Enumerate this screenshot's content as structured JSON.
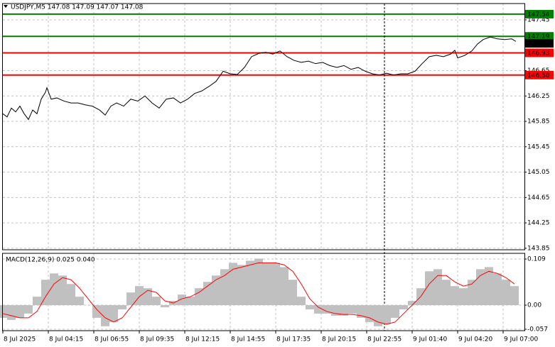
{
  "chart_data": [
    {
      "type": "line",
      "title": "USDJPY,M5  147.08 147.09 147.07 147.08",
      "x": [
        0,
        3,
        6,
        9,
        12,
        15,
        18,
        21,
        24,
        27,
        30,
        31,
        34,
        38,
        43,
        48,
        53,
        58,
        63,
        68,
        72,
        76,
        80,
        85,
        90,
        95,
        100,
        105,
        110,
        115,
        120,
        125,
        130,
        135,
        140,
        145,
        150,
        155,
        160,
        165,
        170,
        175,
        180,
        185,
        190,
        195,
        200,
        205,
        210,
        215,
        220,
        225,
        230,
        235,
        240,
        245,
        250,
        255,
        260,
        265,
        270,
        275,
        280,
        285,
        290,
        295,
        300,
        305,
        310,
        315,
        318,
        320,
        325,
        330,
        334,
        338,
        343,
        348,
        353,
        358,
        361
      ],
      "series": [
        {
          "color": "#000000",
          "values": [
            145.97,
            145.92,
            146.06,
            146.0,
            146.09,
            145.97,
            145.88,
            146.03,
            145.97,
            146.2,
            146.31,
            146.38,
            146.2,
            146.22,
            146.17,
            146.14,
            146.14,
            146.11,
            146.09,
            146.03,
            145.95,
            146.09,
            146.14,
            146.09,
            146.2,
            146.17,
            146.25,
            146.14,
            146.06,
            146.2,
            146.22,
            146.14,
            146.2,
            146.29,
            146.33,
            146.4,
            146.48,
            146.64,
            146.6,
            146.59,
            146.7,
            146.87,
            146.92,
            146.94,
            146.91,
            146.96,
            146.87,
            146.81,
            146.78,
            146.8,
            146.76,
            146.78,
            146.73,
            146.7,
            146.73,
            146.67,
            146.7,
            146.64,
            146.6,
            146.58,
            146.61,
            146.58,
            146.6,
            146.6,
            146.64,
            146.76,
            146.87,
            146.89,
            146.87,
            146.91,
            146.97,
            146.85,
            146.89,
            146.96,
            147.07,
            147.14,
            147.18,
            147.15,
            147.14,
            147.15,
            147.11
          ]
        }
      ],
      "levels": [
        {
          "value": 147.54,
          "color": "#008000"
        },
        {
          "value": 147.19,
          "color": "#008000"
        },
        {
          "value": 146.93,
          "color": "#ff0000"
        },
        {
          "value": 146.58,
          "color": "#ff0000"
        }
      ],
      "last": 147.08,
      "vline": 268.5,
      "xlim": [
        0,
        367
      ],
      "xticks": [
        {
          "value": 0,
          "label": "8 Jul 2025"
        },
        {
          "value": 32,
          "label": "8 Jul 04:15"
        },
        {
          "value": 64,
          "label": "8 Jul 06:55"
        },
        {
          "value": 96,
          "label": "8 Jul 09:35"
        },
        {
          "value": 128,
          "label": "8 Jul 12:15"
        },
        {
          "value": 160,
          "label": "8 Jul 14:55"
        },
        {
          "value": 192,
          "label": "8 Jul 17:35"
        },
        {
          "value": 224,
          "label": "8 Jul 20:15"
        },
        {
          "value": 256,
          "label": "8 Jul 22:55"
        },
        {
          "value": 288,
          "label": "9 Jul 01:40"
        },
        {
          "value": 320,
          "label": "9 Jul 04:20"
        },
        {
          "value": 352,
          "label": "9 Jul 07:00"
        }
      ],
      "ylim": [
        143.826,
        147.707
      ],
      "yticks": [
        147.45,
        146.65,
        146.25,
        145.85,
        145.45,
        145.05,
        144.65,
        144.25,
        143.85
      ],
      "grid": true
    },
    {
      "type": "macd",
      "title": "MACD(12,26,9) 0.025 0.040",
      "x": [
        0,
        6,
        12,
        18,
        24,
        30,
        36,
        42,
        48,
        54,
        60,
        66,
        72,
        78,
        84,
        90,
        96,
        102,
        108,
        114,
        120,
        126,
        132,
        138,
        144,
        150,
        156,
        162,
        168,
        174,
        180,
        186,
        192,
        198,
        204,
        210,
        216,
        222,
        228,
        234,
        240,
        246,
        252,
        258,
        264,
        270,
        276,
        282,
        288,
        294,
        300,
        306,
        312,
        318,
        324,
        330,
        336,
        342,
        348,
        354,
        360
      ],
      "series": [
        {
          "color": "#c0c0c0",
          "values": [
            -0.03,
            -0.035,
            -0.03,
            -0.02,
            0.02,
            0.06,
            0.075,
            0.07,
            0.05,
            0.02,
            0.0,
            -0.03,
            -0.05,
            -0.04,
            -0.01,
            0.03,
            0.045,
            0.04,
            0.02,
            -0.005,
            0.01,
            0.025,
            0.02,
            0.04,
            0.055,
            0.07,
            0.085,
            0.1,
            0.095,
            0.105,
            0.11,
            0.1,
            0.1,
            0.09,
            0.06,
            0.02,
            -0.01,
            -0.02,
            -0.02,
            -0.025,
            -0.025,
            -0.02,
            -0.03,
            -0.04,
            -0.05,
            -0.045,
            -0.03,
            -0.01,
            0.01,
            0.04,
            0.08,
            0.085,
            0.06,
            0.045,
            0.04,
            0.06,
            0.085,
            0.09,
            0.075,
            0.06,
            0.045
          ]
        },
        {
          "color": "#ff0000",
          "values": [
            -0.02,
            -0.025,
            -0.03,
            -0.03,
            -0.015,
            0.02,
            0.05,
            0.065,
            0.06,
            0.04,
            0.015,
            -0.01,
            -0.03,
            -0.04,
            -0.03,
            -0.005,
            0.02,
            0.035,
            0.03,
            0.01,
            0.005,
            0.015,
            0.02,
            0.03,
            0.045,
            0.06,
            0.07,
            0.085,
            0.09,
            0.095,
            0.1,
            0.1,
            0.1,
            0.095,
            0.08,
            0.05,
            0.015,
            -0.005,
            -0.015,
            -0.02,
            -0.022,
            -0.022,
            -0.025,
            -0.03,
            -0.04,
            -0.045,
            -0.04,
            -0.02,
            0.0,
            0.02,
            0.05,
            0.07,
            0.07,
            0.055,
            0.045,
            0.05,
            0.07,
            0.08,
            0.075,
            0.065,
            0.05
          ]
        }
      ],
      "xlim": [
        0,
        367
      ],
      "ylim": [
        -0.0604,
        0.1225
      ],
      "yticks": [
        0.109,
        {
          "value": 0,
          "label": "0.00"
        },
        -0.057
      ]
    }
  ]
}
